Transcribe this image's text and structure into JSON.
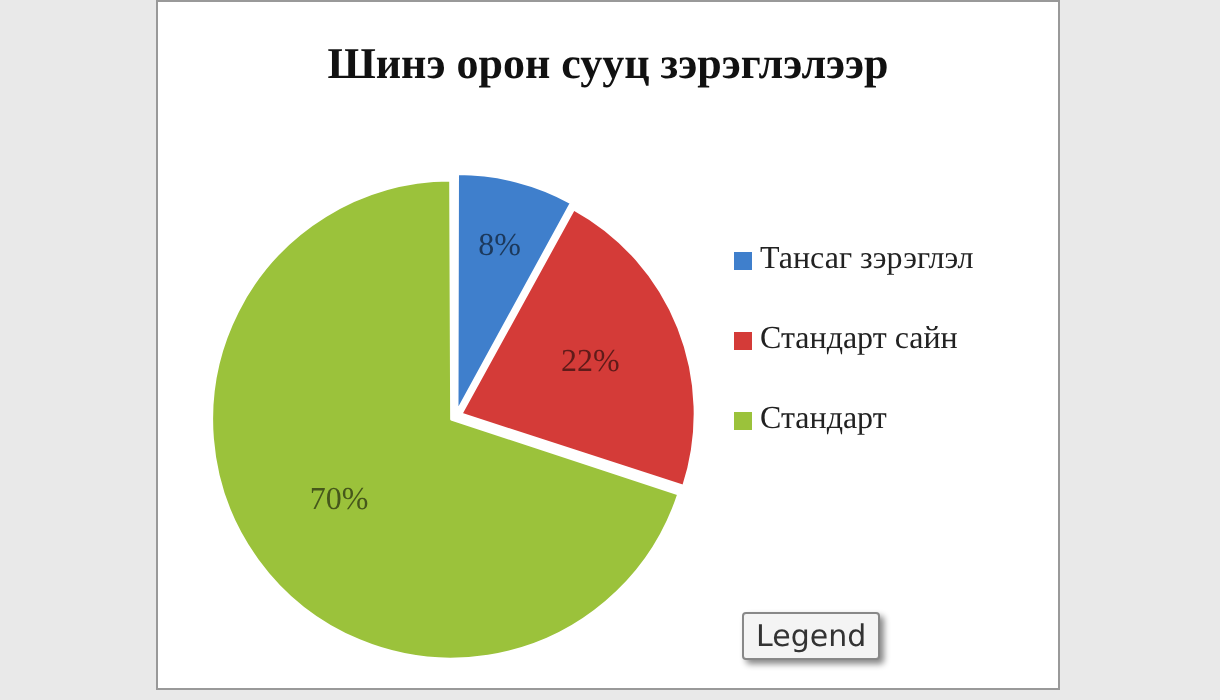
{
  "chart_data": {
    "type": "pie",
    "title": "Шинэ орон сууц зэрэглэлээр",
    "categories": [
      "Тансаг зэрэглэл",
      "Стандарт сайн",
      "Стандарт"
    ],
    "values": [
      8,
      22,
      70
    ],
    "colors": [
      "#3f7fcc",
      "#d43b38",
      "#9bc23b"
    ],
    "value_labels": [
      "8%",
      "22%",
      "70%"
    ],
    "legend": "right",
    "annotations": [
      "Legend"
    ]
  }
}
